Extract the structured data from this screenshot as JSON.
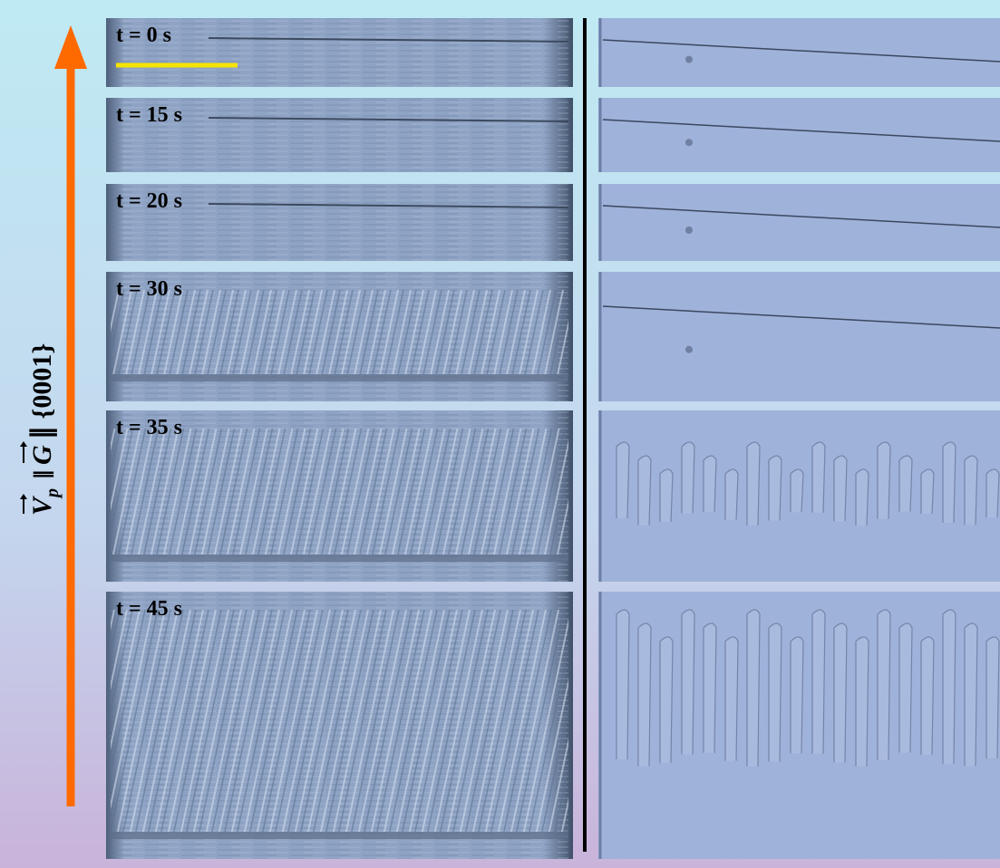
{
  "panels": [
    {
      "label": "t = 0 s"
    },
    {
      "label": "t = 15 s"
    },
    {
      "label": "t = 20 s"
    },
    {
      "label": "t = 30 s"
    },
    {
      "label": "t = 35 s"
    },
    {
      "label": "t = 45 s"
    }
  ],
  "axis_label": {
    "v": "V",
    "v_sub": "p",
    "sep1": "∥",
    "g": "G",
    "rest": "∥ {0001}"
  }
}
